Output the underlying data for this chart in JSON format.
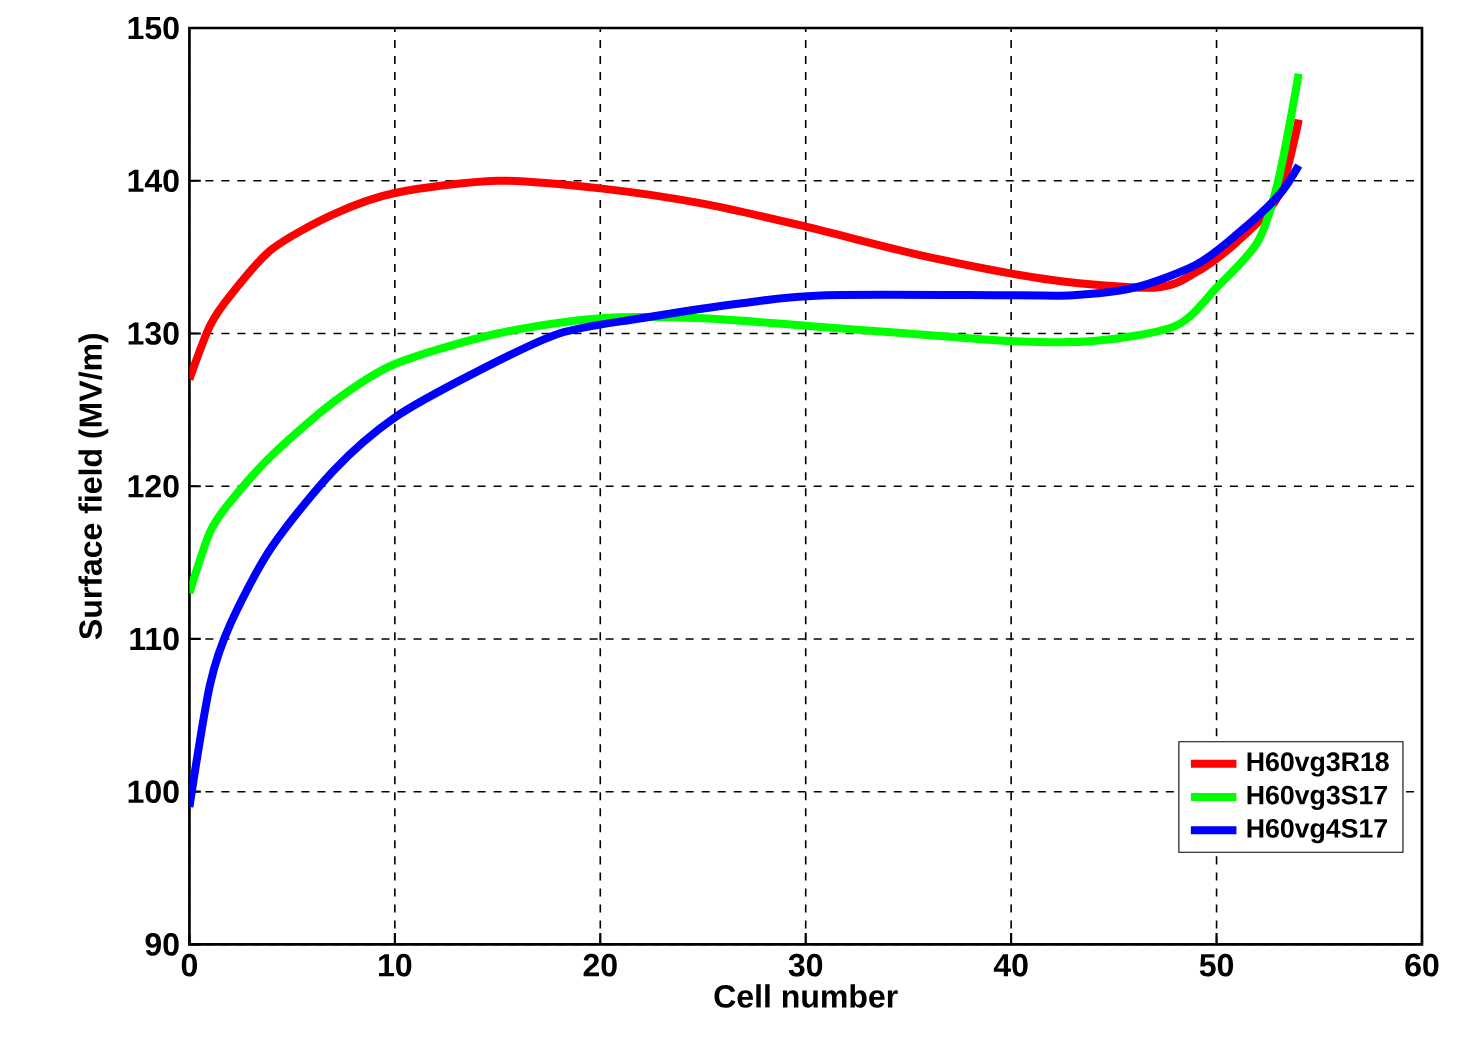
{
  "chart_data": {
    "type": "line",
    "xlabel": "Cell number",
    "ylabel": "Surface field (MV/m)",
    "xlim": [
      0,
      60
    ],
    "xticks": [
      0,
      10,
      20,
      30,
      40,
      50,
      60
    ],
    "ylim": [
      90,
      150
    ],
    "yticks": [
      90,
      100,
      110,
      120,
      130,
      140,
      150
    ],
    "grid": true,
    "legend": "bottom right",
    "line_style": "solid",
    "marker": "none",
    "series": [
      {
        "name": "H60vg3R18",
        "color": "#ff0000",
        "x": [
          0,
          1,
          2,
          4,
          7,
          10,
          15,
          20,
          25,
          30,
          36,
          42,
          47,
          49,
          51,
          53,
          54
        ],
        "values": [
          127,
          130.5,
          132.5,
          135.5,
          137.8,
          139.2,
          140,
          139.5,
          138.5,
          137,
          135,
          133.5,
          133,
          134,
          136,
          139,
          144
        ]
      },
      {
        "name": "H60vg3S17",
        "color": "#00ff00",
        "x": [
          0,
          1,
          2,
          4,
          7,
          10,
          15,
          20,
          25,
          30,
          35,
          40,
          44,
          48,
          50,
          52,
          53,
          54
        ],
        "values": [
          113,
          117,
          119,
          122,
          125.5,
          128,
          130,
          131,
          131,
          130.5,
          130,
          129.5,
          129.5,
          130.5,
          133,
          136,
          140,
          147
        ]
      },
      {
        "name": "H60vg4S17",
        "color": "#0000ff",
        "x": [
          0,
          1,
          2,
          4,
          7,
          10,
          14,
          18,
          22,
          27,
          31,
          40,
          43,
          46,
          49,
          51,
          53,
          54
        ],
        "values": [
          99,
          107,
          111,
          116,
          121,
          124.5,
          127.5,
          130,
          131,
          132,
          132.5,
          132.5,
          132.5,
          133,
          134.5,
          136.5,
          139,
          141
        ]
      }
    ]
  }
}
